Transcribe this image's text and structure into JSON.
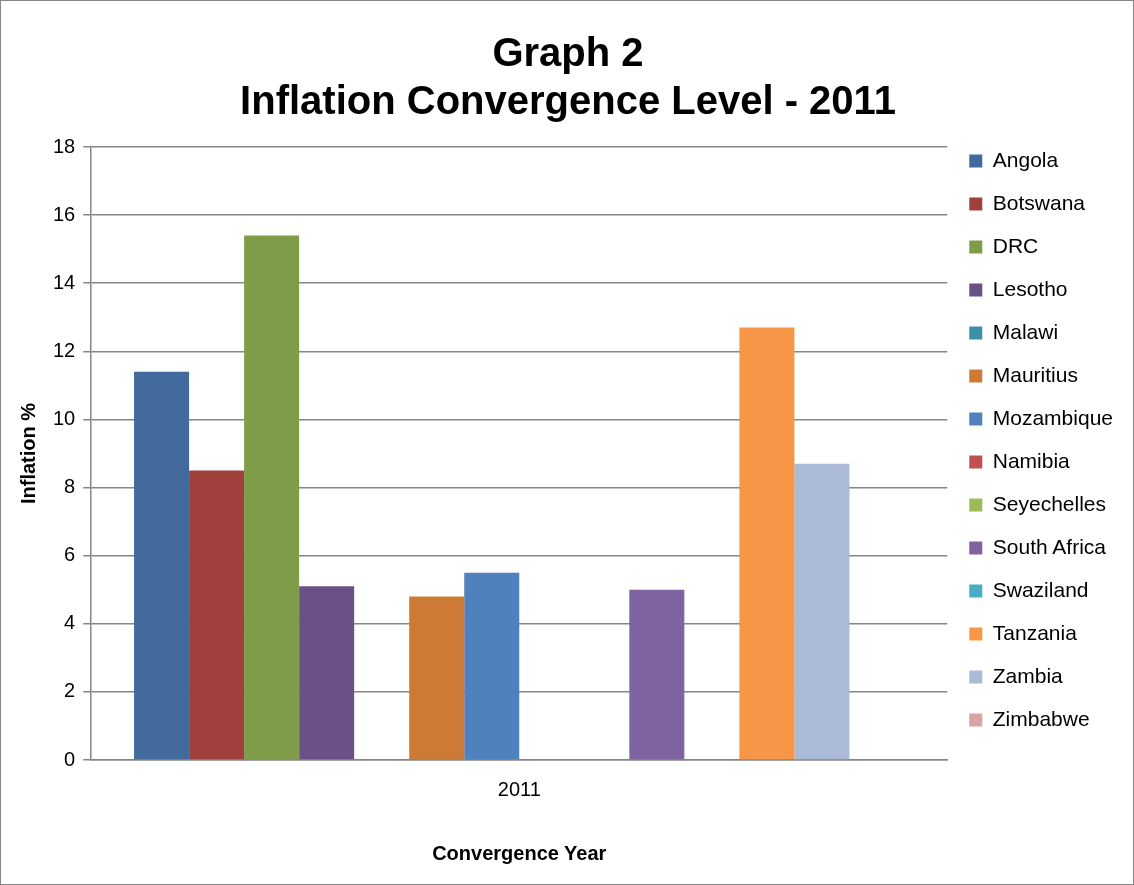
{
  "chart_data": {
    "type": "bar",
    "title": "Graph 2\nInflation Convergence Level - 2011",
    "xlabel": "Convergence Year",
    "ylabel": "Inflation %",
    "categories": [
      "2011"
    ],
    "series": [
      {
        "name": "Angola",
        "color": "#426a9c",
        "values": [
          11.4
        ]
      },
      {
        "name": "Botswana",
        "color": "#a0403d",
        "values": [
          8.5
        ]
      },
      {
        "name": "DRC",
        "color": "#7f9c48",
        "values": [
          15.4
        ]
      },
      {
        "name": "Lesotho",
        "color": "#6a5088",
        "values": [
          5.1
        ]
      },
      {
        "name": "Malawi",
        "color": "#3b8fa6",
        "values": [
          null
        ]
      },
      {
        "name": "Mauritius",
        "color": "#cd7a37",
        "values": [
          4.8
        ]
      },
      {
        "name": "Mozambique",
        "color": "#4f81bd",
        "values": [
          5.5
        ]
      },
      {
        "name": "Namibia",
        "color": "#c0504d",
        "values": [
          null
        ]
      },
      {
        "name": "Seyechelles",
        "color": "#9bbb59",
        "values": [
          null
        ]
      },
      {
        "name": "South Africa",
        "color": "#8064a2",
        "values": [
          5.0
        ]
      },
      {
        "name": "Swaziland",
        "color": "#4bacc6",
        "values": [
          null
        ]
      },
      {
        "name": "Tanzania",
        "color": "#f79646",
        "values": [
          12.7
        ]
      },
      {
        "name": "Zambia",
        "color": "#aabad7",
        "values": [
          8.7
        ]
      },
      {
        "name": "Zimbabwe",
        "color": "#d9a3a3",
        "values": [
          null
        ]
      }
    ],
    "ylim": [
      0,
      18
    ],
    "yticks": [
      0,
      2,
      4,
      6,
      8,
      10,
      12,
      14,
      16,
      18
    ],
    "grid": "y",
    "legend": "right"
  }
}
